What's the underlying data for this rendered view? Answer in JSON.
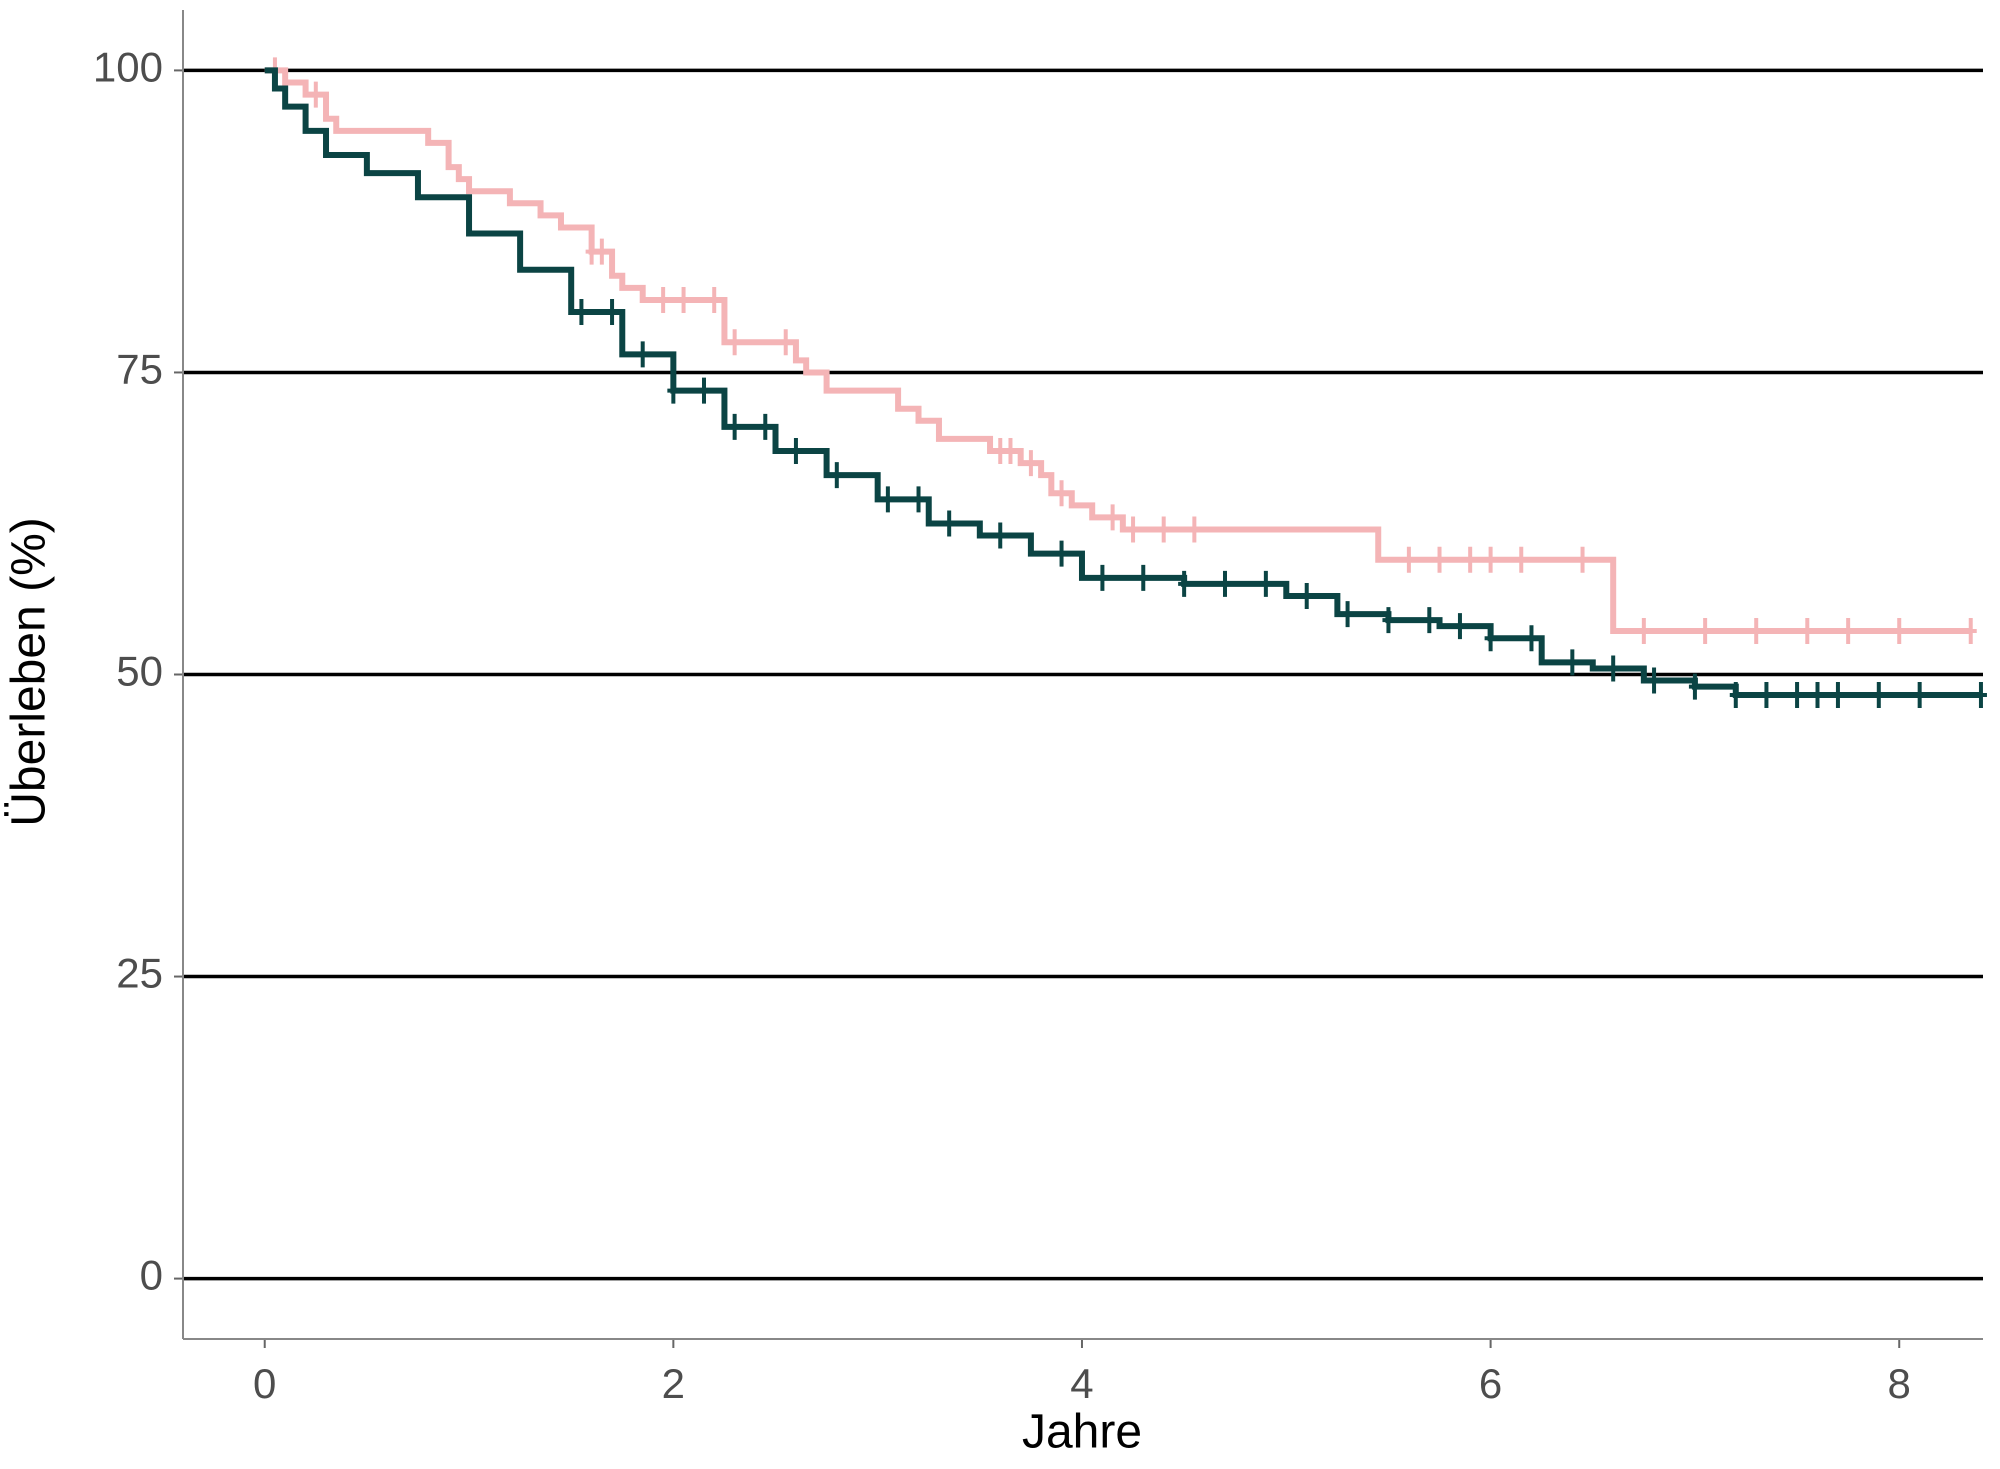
{
  "chart_data": {
    "type": "survival",
    "xlabel": "Jahre",
    "ylabel": "Überleben (%)",
    "xlim": [
      -0.4,
      8.41
    ],
    "ylim": [
      -5,
      105
    ],
    "xticks": [
      0,
      2,
      4,
      6,
      8
    ],
    "yticks": [
      0,
      25,
      50,
      75,
      100
    ],
    "grid": true,
    "series": [
      {
        "color": "#f4b4b6",
        "x": [
          0,
          0.1,
          0.2,
          0.3,
          0.35,
          0.8,
          0.9,
          0.95,
          1.0,
          1.2,
          1.35,
          1.45,
          1.6,
          1.7,
          1.75,
          1.85,
          2.25,
          2.6,
          2.65,
          2.75,
          3.1,
          3.2,
          3.3,
          3.55,
          3.7,
          3.8,
          3.85,
          3.95,
          4.05,
          4.2,
          5.45,
          6.6
        ],
        "values": [
          100,
          99,
          98,
          96,
          95,
          94,
          92,
          91,
          90,
          89,
          88,
          87,
          85,
          83,
          82,
          81,
          77.5,
          76,
          75,
          73.5,
          72,
          71,
          69.5,
          68.5,
          67.5,
          66.5,
          65,
          64,
          63,
          62,
          59.5,
          53.6
        ],
        "censor_x": [
          0.05,
          0.25,
          1.6,
          1.65,
          1.95,
          2.05,
          2.2,
          2.3,
          2.55,
          3.6,
          3.65,
          3.75,
          3.9,
          4.15,
          4.25,
          4.4,
          4.55,
          5.6,
          5.75,
          5.9,
          6.0,
          6.15,
          6.45,
          6.75,
          7.05,
          7.3,
          7.55,
          7.75,
          8.0,
          8.35
        ],
        "censor_values": [
          100,
          98,
          85,
          85,
          81,
          81,
          81,
          77.5,
          77.5,
          68.5,
          68.5,
          67.5,
          65,
          63,
          62,
          62,
          62,
          59.5,
          59.5,
          59.5,
          59.5,
          59.5,
          59.5,
          53.6,
          53.6,
          53.6,
          53.6,
          53.6,
          53.6,
          53.6
        ]
      },
      {
        "color": "#0b4444",
        "x": [
          0,
          0.05,
          0.1,
          0.2,
          0.3,
          0.5,
          0.75,
          1,
          1.25,
          1.5,
          1.75,
          2,
          2.25,
          2.5,
          2.75,
          3,
          3.25,
          3.5,
          3.75,
          4,
          4.5,
          5,
          5.25,
          5.5,
          5.75,
          6,
          6.25,
          6.5,
          6.75,
          7,
          7.2
        ],
        "values": [
          100,
          98.5,
          97,
          95,
          93,
          91.5,
          89.5,
          86.5,
          83.5,
          80,
          76.5,
          73.5,
          70.5,
          68.5,
          66.5,
          64.5,
          62.5,
          61.5,
          60,
          58,
          57.5,
          56.5,
          55,
          54.5,
          54,
          53,
          51,
          50.5,
          49.5,
          49,
          48.3
        ],
        "censor_x": [
          1.55,
          1.7,
          1.85,
          2.0,
          2.15,
          2.3,
          2.45,
          2.6,
          2.8,
          3.05,
          3.2,
          3.35,
          3.6,
          3.9,
          4.1,
          4.3,
          4.5,
          4.7,
          4.9,
          5.1,
          5.3,
          5.5,
          5.7,
          5.85,
          6.0,
          6.2,
          6.4,
          6.6,
          6.8,
          7.0,
          7.2,
          7.35,
          7.5,
          7.6,
          7.7,
          7.9,
          8.1,
          8.4
        ],
        "censor_values": [
          80,
          80,
          76.5,
          73.5,
          73.5,
          70.5,
          70.5,
          68.5,
          66.5,
          64.5,
          64.5,
          62.5,
          61.5,
          60,
          58,
          58,
          57.5,
          57.5,
          57.5,
          56.5,
          55,
          54.5,
          54.5,
          54,
          53,
          53,
          51,
          50.5,
          49.5,
          49,
          48.3,
          48.3,
          48.3,
          48.3,
          48.3,
          48.3,
          48.3,
          48.3
        ]
      }
    ]
  }
}
